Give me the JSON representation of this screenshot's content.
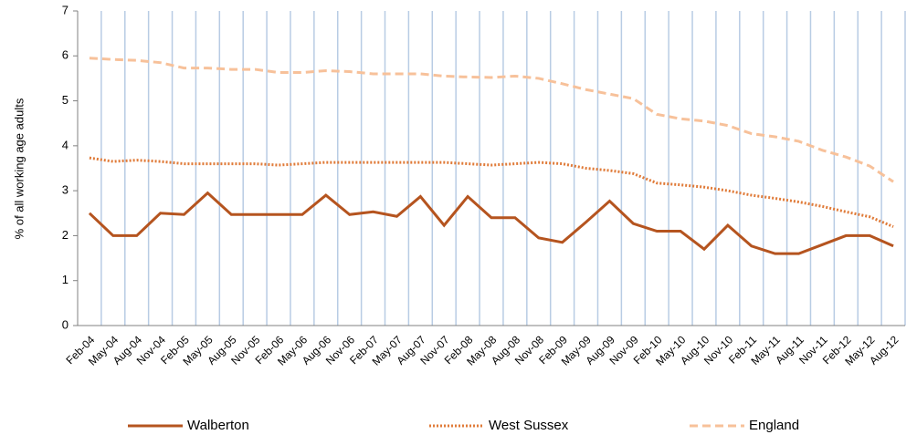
{
  "chart_data": {
    "type": "line",
    "ylabel": "% of all working age adults",
    "categories": [
      "Feb-04",
      "May-04",
      "Aug-04",
      "Nov-04",
      "Feb-05",
      "May-05",
      "Aug-05",
      "Nov-05",
      "Feb-06",
      "May-06",
      "Aug-06",
      "Nov-06",
      "Feb-07",
      "May-07",
      "Aug-07",
      "Nov-07",
      "Feb-08",
      "May-08",
      "Aug-08",
      "Nov-08",
      "Feb-09",
      "May-09",
      "Aug-09",
      "Nov-09",
      "Feb-10",
      "May-10",
      "Aug-10",
      "Nov-10",
      "Feb-11",
      "May-11",
      "Aug-11",
      "Nov-11",
      "Feb-12",
      "May-12",
      "Aug-12"
    ],
    "series": [
      {
        "name": "Walberton",
        "color": "#b5541f",
        "dash": "solid",
        "values": [
          2.5,
          2.0,
          2.0,
          2.5,
          2.47,
          2.95,
          2.47,
          2.47,
          2.47,
          2.47,
          2.9,
          2.47,
          2.53,
          2.43,
          2.87,
          2.23,
          2.87,
          2.4,
          2.4,
          1.95,
          1.85,
          2.3,
          2.77,
          2.27,
          2.1,
          2.1,
          1.7,
          2.23,
          1.77,
          1.6,
          1.6,
          1.8,
          2.0,
          2.0,
          1.77
        ]
      },
      {
        "name": "West Sussex",
        "color": "#e07b39",
        "dash": "dotted",
        "values": [
          3.73,
          3.65,
          3.68,
          3.65,
          3.6,
          3.6,
          3.6,
          3.6,
          3.57,
          3.6,
          3.63,
          3.63,
          3.63,
          3.63,
          3.63,
          3.63,
          3.6,
          3.57,
          3.6,
          3.63,
          3.6,
          3.5,
          3.45,
          3.38,
          3.17,
          3.13,
          3.08,
          3.0,
          2.9,
          2.83,
          2.75,
          2.65,
          2.53,
          2.42,
          2.2
        ]
      },
      {
        "name": "England",
        "color": "#f7c19a",
        "dash": "dashed",
        "values": [
          5.95,
          5.92,
          5.9,
          5.85,
          5.73,
          5.73,
          5.7,
          5.7,
          5.63,
          5.63,
          5.67,
          5.65,
          5.6,
          5.6,
          5.6,
          5.55,
          5.53,
          5.52,
          5.55,
          5.5,
          5.38,
          5.25,
          5.15,
          5.05,
          4.7,
          4.6,
          4.55,
          4.45,
          4.27,
          4.2,
          4.1,
          3.9,
          3.75,
          3.55,
          3.2
        ]
      }
    ],
    "ylim": [
      0,
      7
    ],
    "yticks": [
      0,
      1,
      2,
      3,
      4,
      5,
      6,
      7
    ],
    "grid": "vertical",
    "grid_color": "#b8cce4",
    "legend": "bottom"
  }
}
